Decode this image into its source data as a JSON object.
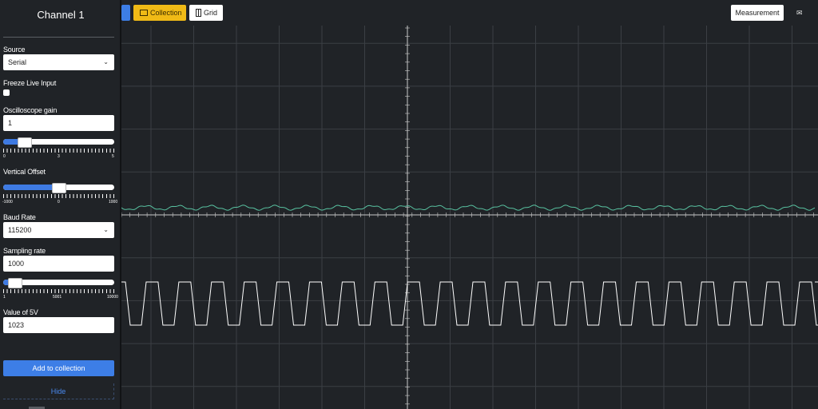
{
  "sidebar": {
    "title": "Channel 1",
    "source_label": "Source",
    "source_value": "Serial",
    "freeze_label": "Freeze Live Input",
    "gain_label": "Oscilloscope gain",
    "gain_value": "1",
    "gain_ticks": [
      "0",
      "3",
      "5"
    ],
    "gain_level": 0.15,
    "offset_label": "Vertical Offset",
    "offset_ticks": [
      "-1000",
      "0",
      "1000"
    ],
    "offset_level": 0.5,
    "baud_label": "Baud Rate",
    "baud_value": "115200",
    "sampling_label": "Sampling rate",
    "sampling_value": "1000",
    "sampling_ticks": [
      "1",
      "5001",
      "10000"
    ],
    "sampling_level": 0.05,
    "v5_label": "Value of 5V",
    "v5_value": "1023",
    "add_label": "Add to collection",
    "hide_label": "Hide"
  },
  "toolbar": {
    "collection_label": "Collection",
    "grid_label": "Grid",
    "measurement_label": "Measurement"
  },
  "colors": {
    "background": "#202327",
    "grid": "#3b3f44",
    "axis": "#c9c9c9",
    "trace1": "#58c1a0",
    "trace2": "#ffffff",
    "accent_blue": "#3d7ee6",
    "accent_yellow": "#f0ba16"
  },
  "icons": {
    "collection": "folder-icon",
    "grid": "grid-icon",
    "notify": "mail-icon",
    "chevron": "chevron-down-icon"
  }
}
